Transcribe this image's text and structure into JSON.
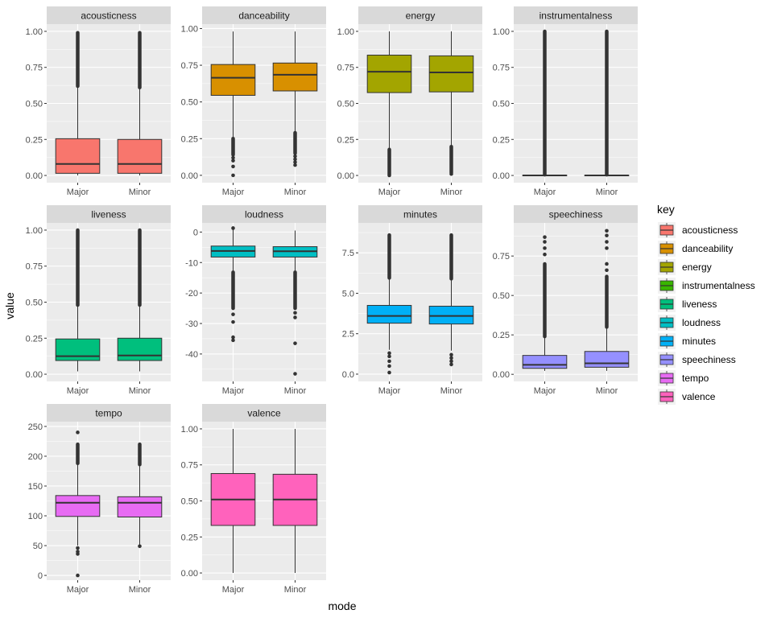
{
  "chart_data": {
    "type": "boxplot",
    "xlabel": "mode",
    "ylabel": "value",
    "x_categories": [
      "Major",
      "Minor"
    ],
    "legend": {
      "title": "key",
      "placement": "right",
      "entries": [
        {
          "name": "acousticness",
          "color": "#F8766D"
        },
        {
          "name": "danceability",
          "color": "#D89000"
        },
        {
          "name": "energy",
          "color": "#A3A500"
        },
        {
          "name": "instrumentalness",
          "color": "#39B600"
        },
        {
          "name": "liveness",
          "color": "#00BF7D"
        },
        {
          "name": "loudness",
          "color": "#00BFC4"
        },
        {
          "name": "minutes",
          "color": "#00B0F6"
        },
        {
          "name": "speechiness",
          "color": "#9590FF"
        },
        {
          "name": "tempo",
          "color": "#E76BF3"
        },
        {
          "name": "valence",
          "color": "#FF62BC"
        }
      ]
    },
    "facets": [
      {
        "name": "acousticness",
        "color": "#F8766D",
        "ylim": [
          -0.05,
          1.05
        ],
        "yticks": [
          0,
          0.25,
          0.5,
          0.75,
          1.0
        ],
        "ytick_labels": [
          "0.00",
          "0.25",
          "0.50",
          "0.75",
          "1.00"
        ],
        "boxes": [
          {
            "category": "Major",
            "q1": 0.015,
            "median": 0.08,
            "q3": 0.255,
            "whisker_low": 0.0,
            "whisker_high": 0.62,
            "outlier_band": [
              0.62,
              0.99
            ],
            "outliers": []
          },
          {
            "category": "Minor",
            "q1": 0.015,
            "median": 0.08,
            "q3": 0.25,
            "whisker_low": 0.0,
            "whisker_high": 0.61,
            "outlier_band": [
              0.61,
              0.99
            ],
            "outliers": []
          }
        ]
      },
      {
        "name": "danceability",
        "color": "#D89000",
        "ylim": [
          -0.05,
          1.03
        ],
        "yticks": [
          0,
          0.25,
          0.5,
          0.75,
          1.0
        ],
        "ytick_labels": [
          "0.00",
          "0.25",
          "0.50",
          "0.75",
          "1.00"
        ],
        "boxes": [
          {
            "category": "Major",
            "q1": 0.545,
            "median": 0.665,
            "q3": 0.755,
            "whisker_low": 0.25,
            "whisker_high": 0.98,
            "outlier_band": [
              0.14,
              0.25
            ],
            "outliers": [
              0.0,
              0.06,
              0.1,
              0.12
            ]
          },
          {
            "category": "Minor",
            "q1": 0.575,
            "median": 0.685,
            "q3": 0.765,
            "whisker_low": 0.29,
            "whisker_high": 0.98,
            "outlier_band": [
              0.15,
              0.29
            ],
            "outliers": [
              0.07,
              0.09,
              0.11,
              0.13
            ]
          }
        ]
      },
      {
        "name": "energy",
        "color": "#A3A500",
        "ylim": [
          -0.05,
          1.05
        ],
        "yticks": [
          0,
          0.25,
          0.5,
          0.75,
          1.0
        ],
        "ytick_labels": [
          "0.00",
          "0.25",
          "0.50",
          "0.75",
          "1.00"
        ],
        "boxes": [
          {
            "category": "Major",
            "q1": 0.575,
            "median": 0.72,
            "q3": 0.835,
            "whisker_low": 0.18,
            "whisker_high": 1.0,
            "outlier_band": [
              0.0,
              0.18
            ],
            "outliers": []
          },
          {
            "category": "Minor",
            "q1": 0.58,
            "median": 0.715,
            "q3": 0.83,
            "whisker_low": 0.2,
            "whisker_high": 1.0,
            "outlier_band": [
              0.02,
              0.2
            ],
            "outliers": [
              0.01
            ]
          }
        ]
      },
      {
        "name": "instrumentalness",
        "color": "#39B600",
        "ylim": [
          -0.05,
          1.05
        ],
        "yticks": [
          0,
          0.25,
          0.5,
          0.75,
          1.0
        ],
        "ytick_labels": [
          "0.00",
          "0.25",
          "0.50",
          "0.75",
          "1.00"
        ],
        "boxes": [
          {
            "category": "Major",
            "q1": 0.0,
            "median": 0.0,
            "q3": 0.002,
            "whisker_low": 0.0,
            "whisker_high": 0.005,
            "outlier_band": [
              0.005,
              1.0
            ],
            "outliers": []
          },
          {
            "category": "Minor",
            "q1": 0.0,
            "median": 0.0,
            "q3": 0.002,
            "whisker_low": 0.0,
            "whisker_high": 0.005,
            "outlier_band": [
              0.005,
              1.0
            ],
            "outliers": []
          }
        ]
      },
      {
        "name": "liveness",
        "color": "#00BF7D",
        "ylim": [
          -0.05,
          1.05
        ],
        "yticks": [
          0,
          0.25,
          0.5,
          0.75,
          1.0
        ],
        "ytick_labels": [
          "0.00",
          "0.25",
          "0.50",
          "0.75",
          "1.00"
        ],
        "boxes": [
          {
            "category": "Major",
            "q1": 0.095,
            "median": 0.125,
            "q3": 0.245,
            "whisker_low": 0.02,
            "whisker_high": 0.48,
            "outlier_band": [
              0.48,
              1.0
            ],
            "outliers": []
          },
          {
            "category": "Minor",
            "q1": 0.095,
            "median": 0.13,
            "q3": 0.25,
            "whisker_low": 0.02,
            "whisker_high": 0.48,
            "outlier_band": [
              0.48,
              1.0
            ],
            "outliers": []
          }
        ]
      },
      {
        "name": "loudness",
        "color": "#00BFC4",
        "ylim": [
          -49,
          3
        ],
        "yticks": [
          0,
          -10,
          -20,
          -30,
          -40
        ],
        "ytick_labels": [
          "0",
          "-10",
          "-20",
          "-30",
          "-40"
        ],
        "boxes": [
          {
            "category": "Major",
            "q1": -8.2,
            "median": -6.2,
            "q3": -4.6,
            "whisker_low": -13.2,
            "whisker_high": 1.2,
            "outlier_band": [
              -25,
              -13.2
            ],
            "outliers": [
              1.3,
              -27,
              -29.5,
              -34.5,
              -35.5
            ]
          },
          {
            "category": "Minor",
            "q1": -8.2,
            "median": -6.3,
            "q3": -4.8,
            "whisker_low": -13.2,
            "whisker_high": 0.5,
            "outlier_band": [
              -25,
              -13.2
            ],
            "outliers": [
              -26.5,
              -28,
              -36.5,
              -46.5
            ]
          }
        ]
      },
      {
        "name": "minutes",
        "color": "#00B0F6",
        "ylim": [
          -0.45,
          9.35
        ],
        "yticks": [
          0,
          2.5,
          5.0,
          7.5
        ],
        "ytick_labels": [
          "0.0",
          "2.5",
          "5.0",
          "7.5"
        ],
        "boxes": [
          {
            "category": "Major",
            "q1": 3.15,
            "median": 3.6,
            "q3": 4.25,
            "whisker_low": 1.5,
            "whisker_high": 5.95,
            "outlier_band": [
              5.95,
              8.6
            ],
            "outliers": [
              0.1,
              0.5,
              0.8,
              1.1,
              1.3
            ]
          },
          {
            "category": "Minor",
            "q1": 3.1,
            "median": 3.6,
            "q3": 4.2,
            "whisker_low": 1.45,
            "whisker_high": 5.9,
            "outlier_band": [
              5.9,
              8.6
            ],
            "outliers": [
              0.6,
              0.8,
              1.0,
              1.2
            ]
          }
        ]
      },
      {
        "name": "speechiness",
        "color": "#9590FF",
        "ylim": [
          -0.045,
          0.96
        ],
        "yticks": [
          0,
          0.25,
          0.5,
          0.75
        ],
        "ytick_labels": [
          "0.00",
          "0.25",
          "0.50",
          "0.75"
        ],
        "boxes": [
          {
            "category": "Major",
            "q1": 0.038,
            "median": 0.06,
            "q3": 0.12,
            "whisker_low": 0.022,
            "whisker_high": 0.24,
            "outlier_band": [
              0.24,
              0.7
            ],
            "outliers": [
              0.76,
              0.8,
              0.84,
              0.87
            ]
          },
          {
            "category": "Minor",
            "q1": 0.045,
            "median": 0.07,
            "q3": 0.145,
            "whisker_low": 0.022,
            "whisker_high": 0.3,
            "outlier_band": [
              0.3,
              0.62
            ],
            "outliers": [
              0.66,
              0.7,
              0.8,
              0.84,
              0.88,
              0.91
            ]
          }
        ]
      },
      {
        "name": "tempo",
        "color": "#E76BF3",
        "ylim": [
          -8,
          258
        ],
        "yticks": [
          0,
          50,
          100,
          150,
          200,
          250
        ],
        "ytick_labels": [
          "0",
          "50",
          "100",
          "150",
          "200",
          "250"
        ],
        "boxes": [
          {
            "category": "Major",
            "q1": 99,
            "median": 122,
            "q3": 134,
            "whisker_low": 50,
            "whisker_high": 188,
            "outlier_band": [
              188,
              220
            ],
            "outliers": [
              0,
              36,
              40,
              46,
              240
            ]
          },
          {
            "category": "Minor",
            "q1": 98,
            "median": 122,
            "q3": 132,
            "whisker_low": 50,
            "whisker_high": 186,
            "outlier_band": [
              186,
              220
            ],
            "outliers": [
              49
            ]
          }
        ]
      },
      {
        "name": "valence",
        "color": "#FF62BC",
        "ylim": [
          -0.05,
          1.05
        ],
        "yticks": [
          0,
          0.25,
          0.5,
          0.75,
          1.0
        ],
        "ytick_labels": [
          "0.00",
          "0.25",
          "0.50",
          "0.75",
          "1.00"
        ],
        "boxes": [
          {
            "category": "Major",
            "q1": 0.33,
            "median": 0.51,
            "q3": 0.69,
            "whisker_low": 0.0,
            "whisker_high": 1.0,
            "outlier_band": [],
            "outliers": []
          },
          {
            "category": "Minor",
            "q1": 0.33,
            "median": 0.51,
            "q3": 0.685,
            "whisker_low": 0.0,
            "whisker_high": 1.0,
            "outlier_band": [],
            "outliers": []
          }
        ]
      }
    ]
  }
}
